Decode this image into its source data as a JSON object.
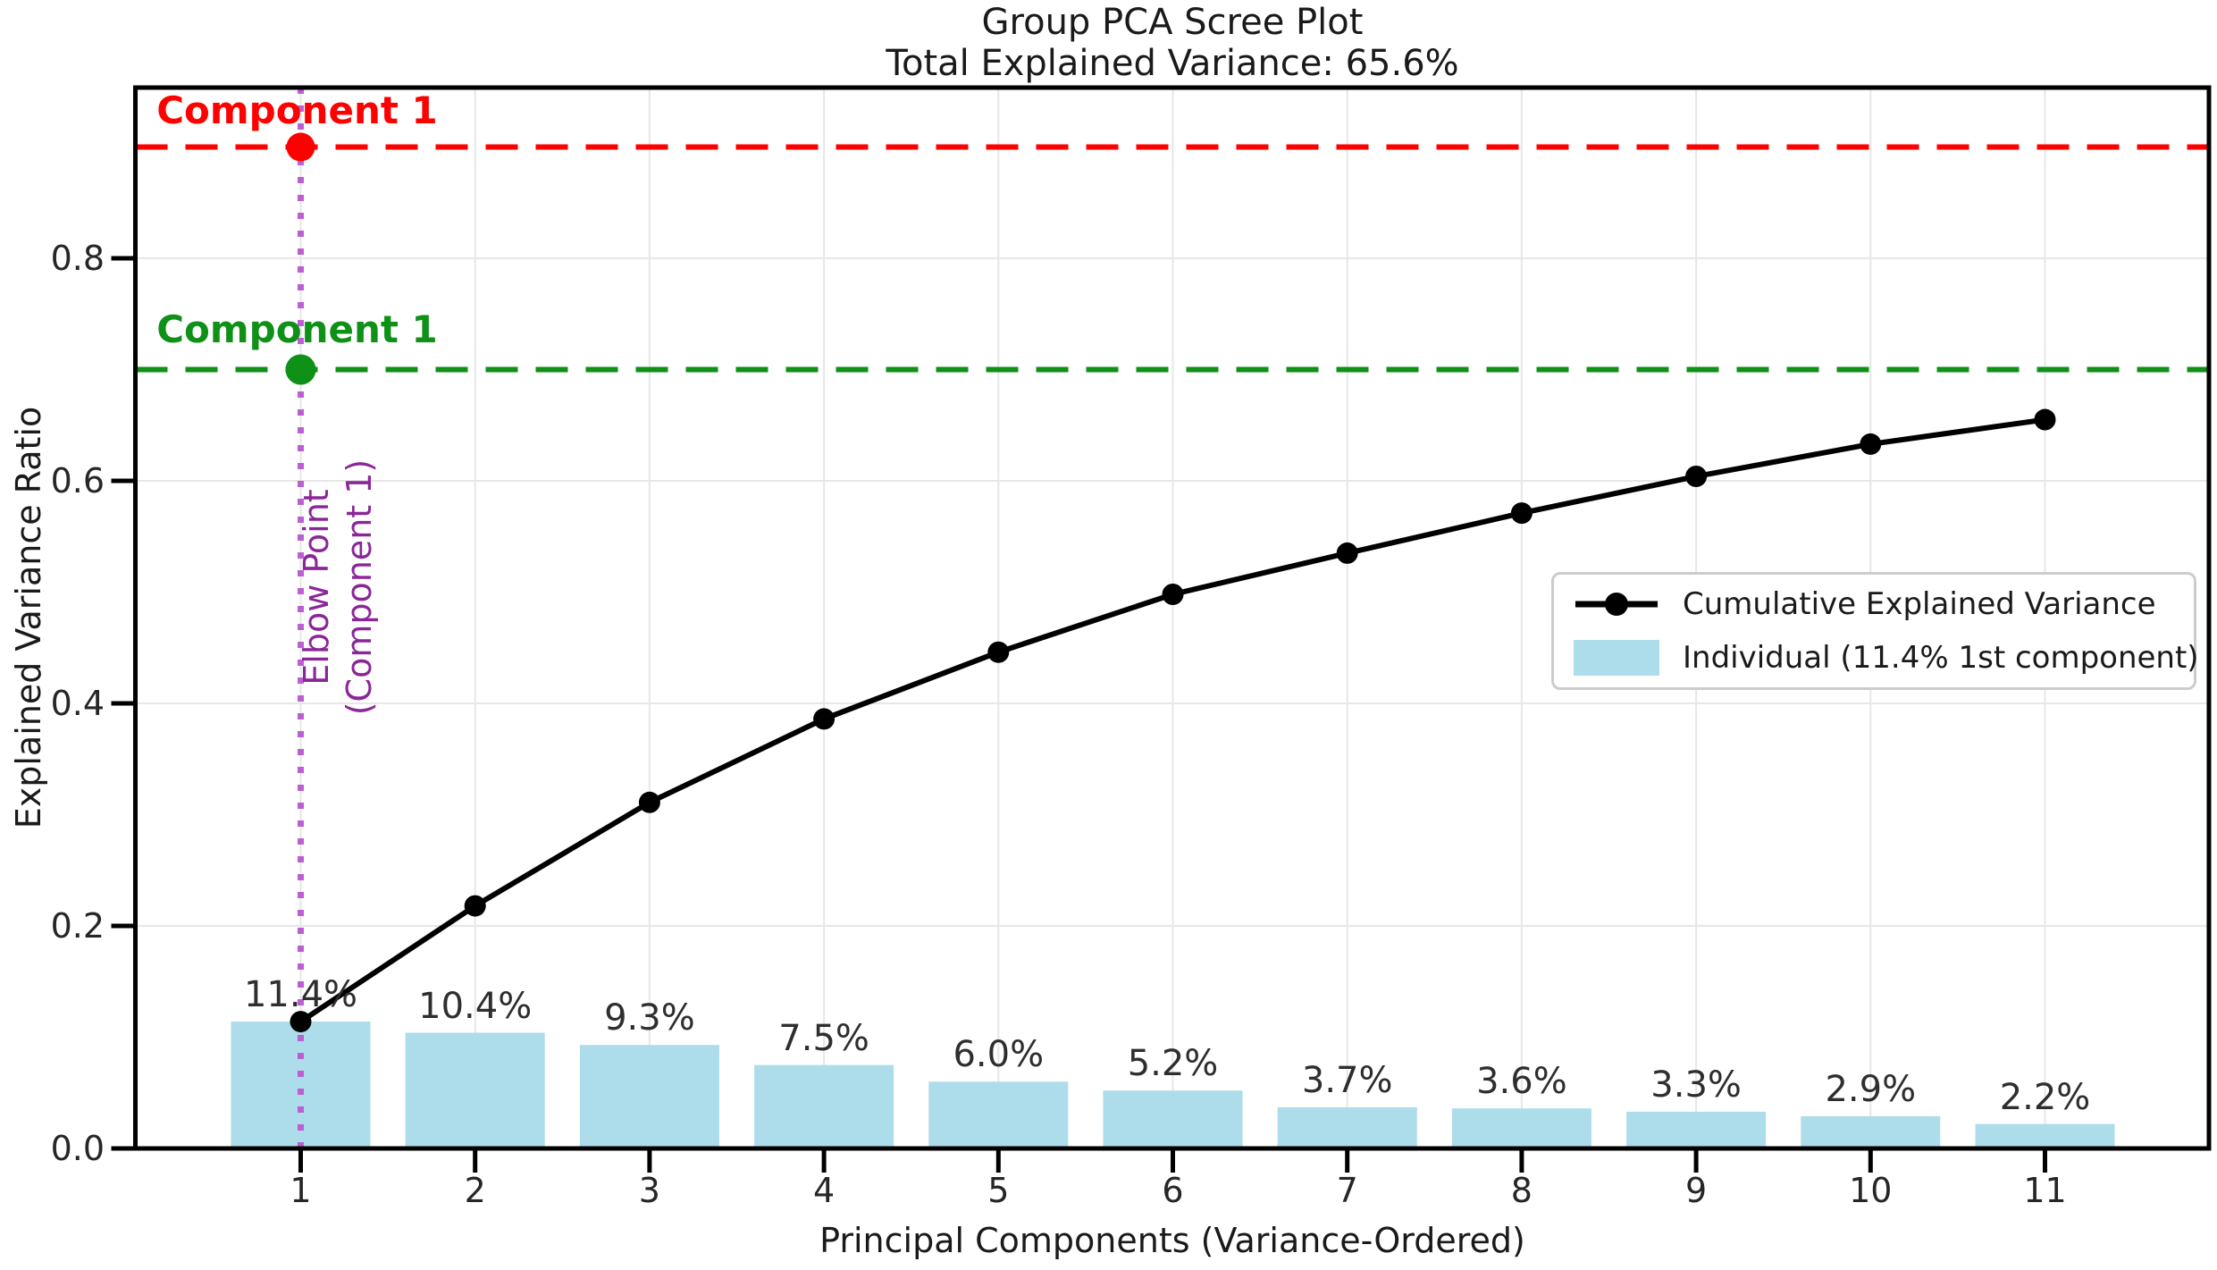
{
  "title": {
    "line1": "Group PCA Scree Plot",
    "line2": "Total Explained Variance: 65.6%"
  },
  "axes": {
    "y_label": "Explained Variance Ratio",
    "x_label": "Principal Components (Variance-Ordered)",
    "y_ticks": [
      {
        "label": "0.0",
        "value": 0.0
      },
      {
        "label": "0.2",
        "value": 0.2
      },
      {
        "label": "0.4",
        "value": 0.4
      },
      {
        "label": "0.6",
        "value": 0.6
      },
      {
        "label": "0.8",
        "value": 0.8
      }
    ],
    "x_ticks": [
      {
        "label": "1",
        "value": 1
      },
      {
        "label": "2",
        "value": 2
      },
      {
        "label": "3",
        "value": 3
      },
      {
        "label": "4",
        "value": 4
      },
      {
        "label": "5",
        "value": 5
      },
      {
        "label": "6",
        "value": 6
      },
      {
        "label": "7",
        "value": 7
      },
      {
        "label": "8",
        "value": 8
      },
      {
        "label": "9",
        "value": 9
      },
      {
        "label": "10",
        "value": 10
      },
      {
        "label": "11",
        "value": 11
      }
    ]
  },
  "legend": {
    "items": [
      {
        "label": "Cumulative Explained Variance",
        "marker": "line-dot",
        "color": "#000000"
      },
      {
        "label": "Individual (11.4% 1st component)",
        "marker": "patch",
        "color": "#ADDCEB"
      }
    ]
  },
  "annotations": {
    "threshold_red": {
      "label": "Component 1",
      "y": 0.9,
      "color": "#FF0000",
      "marker_x": 1
    },
    "threshold_green": {
      "label": "Component 1",
      "y": 0.7,
      "color": "#0F9017",
      "marker_x": 1
    },
    "elbow": {
      "line1": "Elbow Point",
      "line2": "(Component 1)",
      "x": 1,
      "text_color": "#8B2699",
      "line_color": "#BC5FD3"
    }
  },
  "colors": {
    "bar": "#ADDCEB",
    "cumulative_line": "#000000",
    "grid": "#E7E7E7",
    "spine": "#000000"
  },
  "chart_data": {
    "type": "bar",
    "title": "Group PCA Scree Plot — Total Explained Variance: 65.6%",
    "xlabel": "Principal Components (Variance-Ordered)",
    "ylabel": "Explained Variance Ratio",
    "categories": [
      1,
      2,
      3,
      4,
      5,
      6,
      7,
      8,
      9,
      10,
      11
    ],
    "series": [
      {
        "name": "Individual (11.4% 1st component)",
        "type": "bar",
        "color": "#ADDCEB",
        "values": [
          0.114,
          0.104,
          0.093,
          0.075,
          0.06,
          0.052,
          0.037,
          0.036,
          0.033,
          0.029,
          0.022
        ],
        "labels": [
          "11.4%",
          "10.4%",
          "9.3%",
          "7.5%",
          "6.0%",
          "5.2%",
          "3.7%",
          "3.6%",
          "3.3%",
          "2.9%",
          "2.2%"
        ]
      },
      {
        "name": "Cumulative Explained Variance",
        "type": "line",
        "color": "#000000",
        "values": [
          0.114,
          0.218,
          0.311,
          0.386,
          0.446,
          0.498,
          0.535,
          0.571,
          0.604,
          0.633,
          0.655
        ]
      }
    ],
    "reference_lines": [
      {
        "orientation": "horizontal",
        "value": 0.9,
        "style": "dashed",
        "color": "#FF0000",
        "label": "Component 1"
      },
      {
        "orientation": "horizontal",
        "value": 0.7,
        "style": "dashed",
        "color": "#0F9017",
        "label": "Component 1"
      },
      {
        "orientation": "vertical",
        "value": 1,
        "style": "dotted",
        "color": "#BC5FD3",
        "label": "Elbow Point (Component 1)"
      }
    ],
    "ylim": [
      0,
      0.952
    ],
    "xlim": [
      0.06,
      11.94
    ],
    "grid": true,
    "legend_position": "center-right"
  }
}
